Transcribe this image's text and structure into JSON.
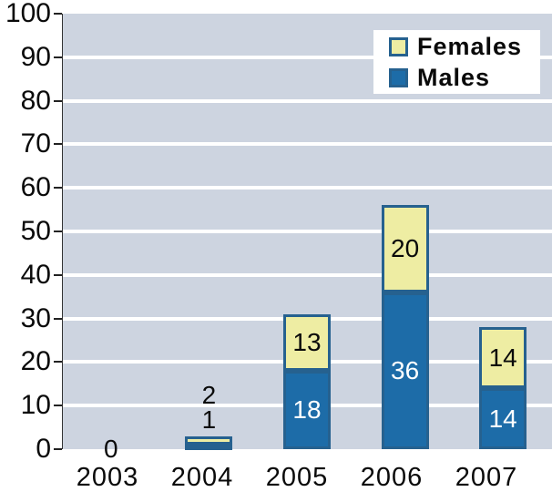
{
  "chart_data": {
    "type": "bar",
    "stacked": true,
    "title": "",
    "xlabel": "",
    "ylabel": "",
    "categories": [
      "2003",
      "2004",
      "2005",
      "2006",
      "2007"
    ],
    "series": [
      {
        "name": "Females",
        "color": "#EEEDA3",
        "label_color": "#0a0a0a",
        "values": [
          0,
          2,
          13,
          20,
          14
        ]
      },
      {
        "name": "Males",
        "color": "#1D6CA8",
        "label_color": "#ffffff",
        "values": [
          0,
          1,
          18,
          36,
          14
        ]
      }
    ],
    "stack_order_bottom_to_top": [
      "Males",
      "Females"
    ],
    "ylim": [
      0,
      100
    ],
    "ytick_step": 10,
    "ytick_labels": [
      "100",
      "90",
      "80",
      "70",
      "60",
      "50",
      "40",
      "30",
      "20",
      "10",
      "0"
    ],
    "grid": true,
    "gridline_color": "#FFFFFF",
    "plot_bg_color": "#CDD4E0",
    "segment_border_color": "#26618F",
    "bar_value_labels": true,
    "zero_total_label": "0",
    "legend_position": "top-right"
  },
  "legend": {
    "items": [
      {
        "label": "Females"
      },
      {
        "label": "Males"
      }
    ]
  }
}
